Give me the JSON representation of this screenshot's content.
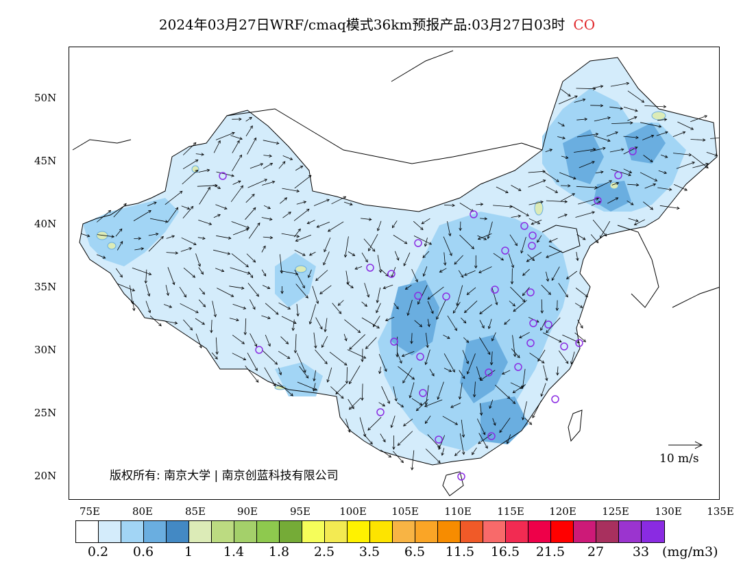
{
  "title": {
    "text": "2024年03月27日WRF/cmaq模式36km预报产品:03月27日03时",
    "species": "CO"
  },
  "axes": {
    "lat_labels": [
      "50N",
      "45N",
      "40N",
      "35N",
      "30N",
      "25N",
      "20N"
    ],
    "lat_values": [
      50,
      45,
      40,
      35,
      30,
      25,
      20
    ],
    "lon_labels": [
      "75E",
      "80E",
      "85E",
      "90E",
      "95E",
      "100E",
      "105E",
      "110E",
      "115E",
      "120E",
      "125E",
      "130E",
      "135E"
    ],
    "lon_values": [
      75,
      80,
      85,
      90,
      95,
      100,
      105,
      110,
      115,
      120,
      125,
      130,
      135
    ],
    "lon_range": [
      73,
      135
    ],
    "lat_range": [
      18,
      54
    ]
  },
  "copyright": "版权所有: 南京大学 | 南京创蓝科技有限公司",
  "wind_legend": {
    "label": "10 m/s"
  },
  "colorbar": {
    "colors": [
      "#ffffff",
      "#d4ecfb",
      "#a2d5f5",
      "#6aaee0",
      "#4389c4",
      "#dcebb7",
      "#bcdb81",
      "#a4d06a",
      "#8ec94e",
      "#75ab37",
      "#f5fd5a",
      "#f3ea52",
      "#fff200",
      "#fde400",
      "#f8b444",
      "#faa526",
      "#f78c00",
      "#f05a28",
      "#f86a6a",
      "#f22b52",
      "#ee0049",
      "#ff0000",
      "#cd1a78",
      "#a8305e",
      "#9b34cf",
      "#8a2be2"
    ],
    "labels": [
      "0.2",
      "0.6",
      "1",
      "1.4",
      "1.8",
      "2.5",
      "3.5",
      "6.5",
      "11.5",
      "16.5",
      "21.5",
      "27",
      "33"
    ],
    "unit": "(mg/m3)"
  },
  "map": {
    "field_color_low": "#d4ecfb",
    "field_color_mid": "#a2d5f5",
    "field_color_high": "#6aaee0",
    "field_color_peak": "#4389c4",
    "hotspot_color": "#dcebb7",
    "station_color": "#8a2be2"
  }
}
